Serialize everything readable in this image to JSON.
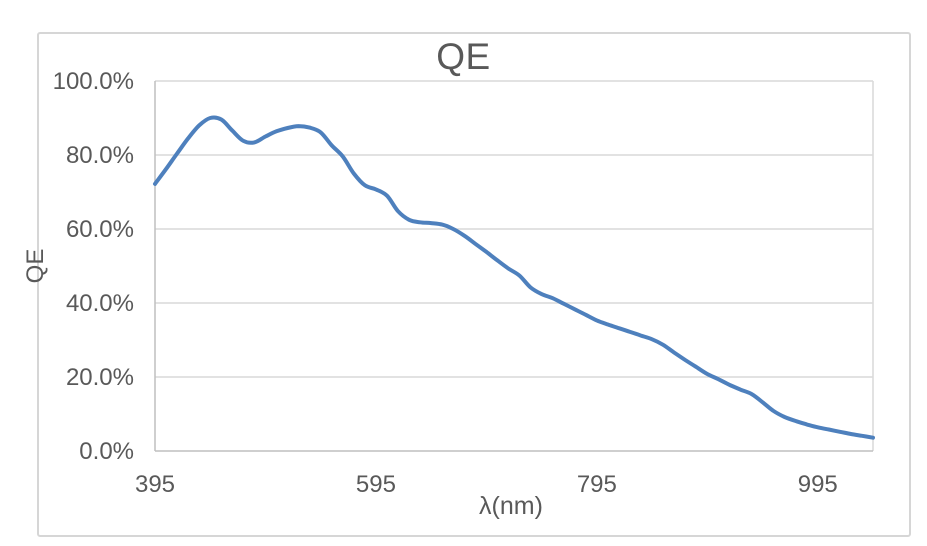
{
  "chart": {
    "title": "QE",
    "y_axis": {
      "title": "QE",
      "tick_labels": [
        "100.0%",
        "80.0%",
        "60.0%",
        "40.0%",
        "20.0%",
        "0.0%"
      ],
      "tick_values": [
        100,
        80,
        60,
        40,
        20,
        0
      ]
    },
    "x_axis": {
      "title": "λ(nm)",
      "tick_labels": [
        "395",
        "595",
        "795",
        "995"
      ],
      "tick_values": [
        395,
        595,
        795,
        995
      ]
    },
    "colors": {
      "line": "#4e80bd",
      "text": "#595959",
      "gridline": "#d9d9d9",
      "axis_line": "#bfbfbf",
      "frame_border": "#d6d6d6",
      "background": "#ffffff"
    }
  },
  "chart_data": {
    "type": "line",
    "title": "QE",
    "xlabel": "λ(nm)",
    "ylabel": "QE",
    "x_unit": "nm",
    "y_unit": "percent",
    "xlim": [
      395,
      1045
    ],
    "ylim": [
      0,
      100
    ],
    "x_tick_values": [
      395,
      595,
      795,
      995
    ],
    "y_tick_values": [
      0,
      20,
      40,
      60,
      80,
      100
    ],
    "grid": "horizontal-only",
    "legend": "none",
    "smooth_line": true,
    "x": [
      395,
      405,
      415,
      425,
      435,
      445,
      455,
      465,
      475,
      485,
      495,
      505,
      515,
      525,
      535,
      545,
      555,
      565,
      575,
      585,
      595,
      605,
      615,
      625,
      635,
      645,
      655,
      665,
      675,
      685,
      695,
      705,
      715,
      725,
      735,
      745,
      755,
      765,
      775,
      785,
      795,
      805,
      815,
      825,
      835,
      845,
      855,
      865,
      875,
      885,
      895,
      905,
      915,
      925,
      935,
      945,
      955,
      965,
      975,
      985,
      995,
      1005,
      1015,
      1025,
      1035,
      1045
    ],
    "qe_percent": [
      72.2,
      76.2,
      80.4,
      84.5,
      88.0,
      90.0,
      89.6,
      86.6,
      83.8,
      83.4,
      85.0,
      86.4,
      87.3,
      87.8,
      87.4,
      86.1,
      82.6,
      79.6,
      75.0,
      71.8,
      70.7,
      69.0,
      64.8,
      62.5,
      61.8,
      61.6,
      61.2,
      60.0,
      58.2,
      56.0,
      53.8,
      51.5,
      49.3,
      47.4,
      44.2,
      42.4,
      41.3,
      39.8,
      38.3,
      36.8,
      35.3,
      34.2,
      33.2,
      32.2,
      31.2,
      30.2,
      28.7,
      26.6,
      24.6,
      22.7,
      20.8,
      19.4,
      17.9,
      16.6,
      15.4,
      13.2,
      10.8,
      9.2,
      8.1,
      7.2,
      6.4,
      5.8,
      5.2,
      4.6,
      4.1,
      3.6
    ]
  }
}
